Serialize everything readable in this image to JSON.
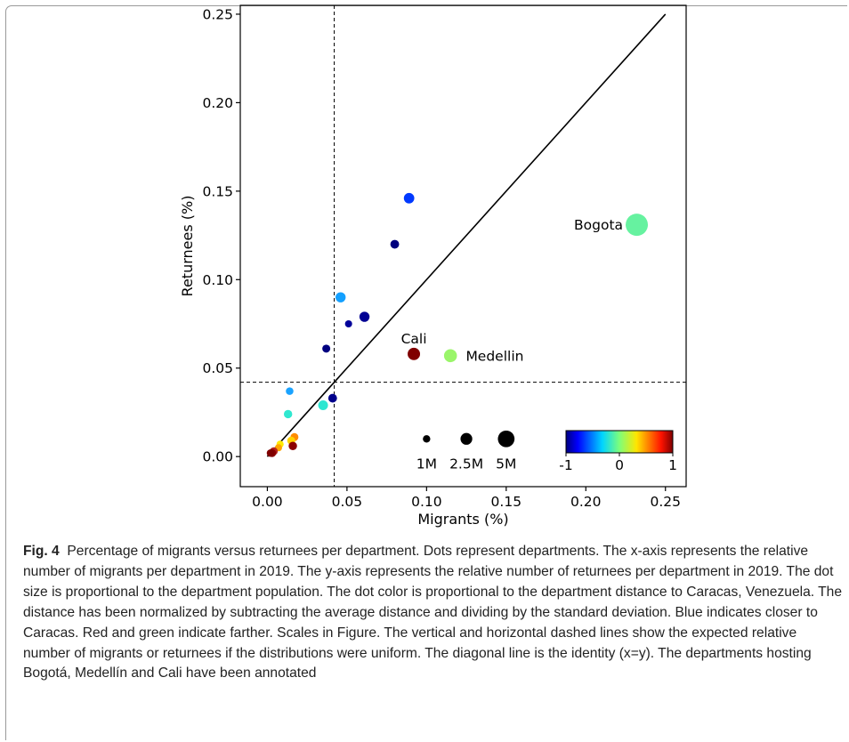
{
  "chart_data": {
    "type": "scatter",
    "xlabel": "Migrants (%)",
    "ylabel": "Returnees (%)",
    "xlim": [
      -0.017,
      0.263
    ],
    "ylim": [
      -0.017,
      0.255
    ],
    "xticks": [
      0.0,
      0.05,
      0.1,
      0.15,
      0.2,
      0.25
    ],
    "xtick_labels": [
      "0.00",
      "0.05",
      "0.10",
      "0.15",
      "0.20",
      "0.25"
    ],
    "yticks": [
      0.0,
      0.05,
      0.1,
      0.15,
      0.2,
      0.25
    ],
    "ytick_labels": [
      "0.00",
      "0.05",
      "0.10",
      "0.15",
      "0.20",
      "0.25"
    ],
    "grid": false,
    "identity_line": [
      [
        0,
        0
      ],
      [
        0.25,
        0.25
      ]
    ],
    "uniform_reference": {
      "x": 0.042,
      "y": 0.042
    },
    "points": [
      {
        "x": 0.232,
        "y": 0.131,
        "size": 7.7,
        "color": "#66f2a0",
        "label": "Bogota"
      },
      {
        "x": 0.115,
        "y": 0.057,
        "size": 2.6,
        "color": "#9af56a",
        "label": "Medellin"
      },
      {
        "x": 0.092,
        "y": 0.058,
        "size": 2.4,
        "color": "#800000",
        "label": "Cali"
      },
      {
        "x": 0.089,
        "y": 0.146,
        "size": 1.7,
        "color": "#0039ff",
        "label": ""
      },
      {
        "x": 0.08,
        "y": 0.12,
        "size": 1.2,
        "color": "#00007f",
        "label": ""
      },
      {
        "x": 0.061,
        "y": 0.079,
        "size": 1.6,
        "color": "#000093",
        "label": ""
      },
      {
        "x": 0.046,
        "y": 0.09,
        "size": 1.6,
        "color": "#13a0ff",
        "label": ""
      },
      {
        "x": 0.051,
        "y": 0.075,
        "size": 0.8,
        "color": "#00009a",
        "label": ""
      },
      {
        "x": 0.037,
        "y": 0.061,
        "size": 1.0,
        "color": "#000080",
        "label": ""
      },
      {
        "x": 0.041,
        "y": 0.033,
        "size": 1.2,
        "color": "#00008b",
        "label": ""
      },
      {
        "x": 0.035,
        "y": 0.029,
        "size": 1.5,
        "color": "#2ee6d2",
        "label": ""
      },
      {
        "x": 0.014,
        "y": 0.037,
        "size": 0.9,
        "color": "#1aa3ff",
        "label": ""
      },
      {
        "x": 0.013,
        "y": 0.024,
        "size": 1.1,
        "color": "#30e8d0",
        "label": ""
      },
      {
        "x": 0.017,
        "y": 0.011,
        "size": 1.0,
        "color": "#ff8c00",
        "label": ""
      },
      {
        "x": 0.015,
        "y": 0.009,
        "size": 1.0,
        "color": "#ffd200",
        "label": ""
      },
      {
        "x": 0.016,
        "y": 0.006,
        "size": 1.1,
        "color": "#8b0000",
        "label": ""
      },
      {
        "x": 0.008,
        "y": 0.007,
        "size": 0.8,
        "color": "#ffea00",
        "label": ""
      },
      {
        "x": 0.007,
        "y": 0.005,
        "size": 0.8,
        "color": "#ffa500",
        "label": ""
      },
      {
        "x": 0.004,
        "y": 0.003,
        "size": 1.0,
        "color": "#b22222",
        "label": ""
      },
      {
        "x": 0.003,
        "y": 0.002,
        "size": 1.0,
        "color": "#8b0000",
        "label": ""
      },
      {
        "x": 0.002,
        "y": 0.002,
        "size": 0.9,
        "color": "#7f0000",
        "label": ""
      }
    ],
    "size_legend": [
      {
        "label": "1M",
        "x": 0.1,
        "size": 1
      },
      {
        "label": "2.5M",
        "x": 0.125,
        "size": 2.5
      },
      {
        "label": "5M",
        "x": 0.15,
        "size": 5
      }
    ],
    "size_legend_y": 0.01,
    "colorbar": {
      "ticks": [
        "-1",
        "0",
        "1"
      ],
      "range": [
        -1,
        1
      ],
      "colormap": "jet",
      "position": "lower-right"
    }
  },
  "caption": {
    "label": "Fig. 4",
    "text": "Percentage of migrants versus returnees per department. Dots represent departments. The x-axis represents the relative number of migrants per department in 2019. The y-axis represents the relative number of returnees per department in 2019. The dot size is proportional to the department population. The dot color is proportional to the department distance to Caracas, Venezuela. The distance has been normalized by subtracting the average distance and dividing by the standard deviation. Blue indicates closer to Caracas. Red and green indicate farther. Scales in Figure. The vertical and horizontal dashed lines show the expected relative number of migrants or returnees if the distributions were uniform. The diagonal line is the identity (x=y). The departments hosting Bogotá, Medellín and Cali have been annotated"
  }
}
